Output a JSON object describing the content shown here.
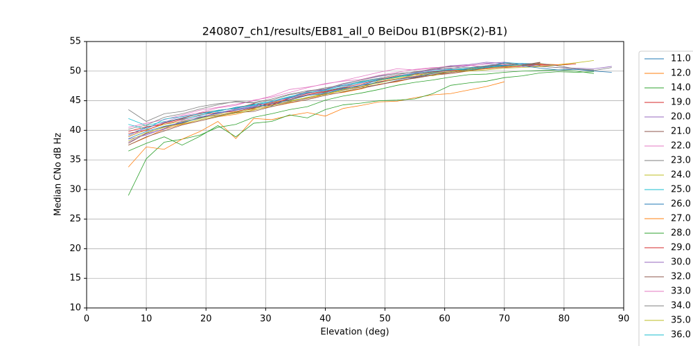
{
  "chart_data": {
    "type": "line",
    "title": "240807_ch1/results/EB81_all_0 BeiDou B1(BPSK(2)-B1)",
    "x_label": "Elevation (deg)",
    "y_label": "Median CNo dB Hz",
    "xlim": [
      0,
      90
    ],
    "xticks": [
      0,
      10,
      20,
      30,
      40,
      50,
      60,
      70,
      80,
      90
    ],
    "ylim": [
      10,
      55
    ],
    "yticks": [
      10,
      15,
      20,
      25,
      30,
      35,
      40,
      45,
      50,
      55
    ],
    "grid": true,
    "legend": "right",
    "x": [
      7,
      10,
      13,
      16,
      19,
      22,
      25,
      28,
      31,
      34,
      37,
      40,
      43,
      46,
      49,
      52,
      55,
      58,
      61,
      64,
      67,
      70,
      73,
      76,
      79,
      82,
      85,
      88
    ],
    "series": [
      {
        "name": "11.0",
        "color": "#1f77b4",
        "values": [
          39.2,
          40.5,
          41.3,
          42.1,
          42.8,
          43.2,
          43.9,
          44.3,
          44.1,
          45.4,
          46.0,
          46.4,
          47.1,
          47.6,
          48.5,
          49.0,
          49.3,
          49.8,
          50.1,
          50.4,
          50.9,
          51.0,
          51.3,
          51.2,
          null,
          null,
          null,
          null
        ]
      },
      {
        "name": "12.0",
        "color": "#ff7f0e",
        "values": [
          37.5,
          38.8,
          40.2,
          41.0,
          41.6,
          42.3,
          42.7,
          43.5,
          44.0,
          44.6,
          45.2,
          46.1,
          46.4,
          47.0,
          47.8,
          48.2,
          48.9,
          49.4,
          49.6,
          50.1,
          50.4,
          50.7,
          51.0,
          51.2,
          51.1,
          51.4,
          null,
          null
        ]
      },
      {
        "name": "14.0",
        "color": "#2ca02c",
        "values": [
          29.0,
          35.2,
          38.0,
          38.5,
          39.2,
          40.5,
          41.0,
          42.2,
          42.8,
          43.5,
          44.0,
          45.1,
          45.8,
          46.3,
          46.9,
          47.6,
          48.1,
          48.5,
          49.0,
          49.4,
          49.5,
          49.8,
          50.0,
          50.1,
          50.2,
          50.0,
          49.6,
          null
        ]
      },
      {
        "name": "19.0",
        "color": "#d62728",
        "values": [
          39.8,
          40.6,
          41.0,
          41.8,
          42.6,
          43.0,
          43.2,
          43.8,
          44.6,
          45.2,
          46.0,
          46.5,
          47.2,
          47.4,
          48.2,
          48.7,
          49.1,
          49.6,
          49.8,
          50.2,
          50.5,
          50.6,
          50.8,
          50.9,
          51.0,
          51.2,
          null,
          null
        ]
      },
      {
        "name": "20.0",
        "color": "#9467bd",
        "values": [
          38.5,
          39.2,
          40.3,
          41.4,
          42.0,
          42.9,
          43.6,
          44.1,
          44.7,
          45.6,
          46.6,
          46.9,
          47.5,
          48.0,
          48.6,
          49.2,
          49.7,
          50.2,
          50.4,
          50.9,
          51.3,
          51.5,
          51.2,
          50.8,
          50.6,
          50.5,
          50.4,
          50.8
        ]
      },
      {
        "name": "21.0",
        "color": "#8c564b",
        "values": [
          37.8,
          39.5,
          40.6,
          41.2,
          42.2,
          42.5,
          43.0,
          43.7,
          44.3,
          44.9,
          45.4,
          46.2,
          46.8,
          47.3,
          47.7,
          48.4,
          48.8,
          49.3,
          49.6,
          50.0,
          50.6,
          51.4,
          51.0,
          51.5,
          null,
          null,
          null,
          null
        ]
      },
      {
        "name": "22.0",
        "color": "#e377c2",
        "values": [
          40.5,
          41.2,
          41.8,
          42.6,
          43.4,
          43.9,
          44.4,
          45.0,
          45.8,
          46.9,
          47.3,
          47.8,
          48.4,
          49.1,
          49.8,
          50.4,
          50.2,
          50.5,
          50.9,
          51.0,
          50.7,
          50.6,
          null,
          null,
          null,
          null,
          null,
          null
        ]
      },
      {
        "name": "23.0",
        "color": "#7f7f7f",
        "values": [
          43.5,
          41.5,
          42.8,
          43.2,
          44.0,
          44.5,
          44.8,
          44.6,
          45.1,
          46.0,
          46.5,
          47.2,
          47.6,
          48.3,
          48.8,
          49.4,
          49.9,
          50.3,
          50.5,
          50.4,
          50.8,
          51.2,
          51.0,
          50.8,
          50.6,
          50.3,
          50.1,
          50.6
        ]
      },
      {
        "name": "24.0",
        "color": "#bcbd22",
        "values": [
          38.9,
          40.1,
          41.0,
          41.5,
          42.0,
          42.7,
          43.1,
          43.6,
          44.8,
          45.0,
          45.5,
          46.3,
          46.6,
          47.1,
          48.4,
          48.9,
          49.5,
          49.2,
          49.9,
          50.0,
          50.2,
          50.5,
          50.6,
          50.8,
          51.0,
          51.4,
          51.8,
          null
        ]
      },
      {
        "name": "25.0",
        "color": "#17becf",
        "values": [
          42.0,
          40.8,
          41.5,
          41.9,
          42.5,
          43.3,
          43.8,
          44.2,
          44.9,
          45.7,
          46.3,
          46.8,
          47.6,
          48.2,
          48.7,
          49.0,
          49.5,
          49.9,
          50.2,
          50.5,
          50.9,
          51.4,
          51.3,
          51.0,
          null,
          null,
          null,
          null
        ]
      },
      {
        "name": "26.0",
        "color": "#1f77b4",
        "values": [
          38.6,
          39.8,
          40.7,
          41.3,
          42.1,
          43.0,
          43.4,
          43.9,
          44.5,
          45.1,
          45.9,
          46.2,
          47.0,
          47.6,
          48.1,
          48.6,
          49.0,
          49.6,
          49.9,
          50.3,
          50.7,
          51.0,
          50.9,
          50.5,
          50.2,
          50.3,
          50.0,
          49.8
        ]
      },
      {
        "name": "27.0",
        "color": "#ff7f0e",
        "values": [
          33.8,
          37.2,
          36.8,
          38.5,
          39.8,
          41.5,
          38.6,
          42.0,
          41.8,
          42.5,
          43.0,
          42.4,
          43.7,
          44.2,
          44.8,
          44.9,
          45.5,
          46.0,
          46.2,
          46.8,
          47.4,
          48.2,
          null,
          null,
          null,
          null,
          null,
          null
        ]
      },
      {
        "name": "28.0",
        "color": "#2ca02c",
        "values": [
          36.5,
          37.8,
          38.9,
          37.5,
          39.0,
          40.8,
          38.9,
          41.2,
          41.5,
          42.6,
          42.1,
          43.5,
          44.3,
          44.6,
          45.0,
          45.1,
          45.3,
          46.2,
          47.6,
          48.0,
          48.3,
          48.9,
          49.2,
          49.7,
          49.9,
          49.8,
          49.9,
          null
        ]
      },
      {
        "name": "29.0",
        "color": "#d62728",
        "values": [
          39.5,
          40.0,
          41.2,
          42.0,
          42.9,
          43.4,
          43.7,
          44.5,
          44.3,
          45.5,
          46.2,
          46.6,
          47.3,
          47.8,
          48.6,
          49.2,
          49.5,
          49.9,
          50.1,
          50.3,
          50.5,
          50.8,
          51.0,
          51.1,
          51.0,
          null,
          null,
          null
        ]
      },
      {
        "name": "30.0",
        "color": "#9467bd",
        "values": [
          38.0,
          39.4,
          40.2,
          41.6,
          42.3,
          42.8,
          43.5,
          44.0,
          44.8,
          45.5,
          46.3,
          46.9,
          47.8,
          48.5,
          49.1,
          49.6,
          49.8,
          50.2,
          50.9,
          51.1,
          51.5,
          51.3,
          null,
          null,
          null,
          null,
          null,
          null
        ]
      },
      {
        "name": "32.0",
        "color": "#8c564b",
        "values": [
          37.5,
          38.9,
          39.9,
          40.9,
          41.6,
          42.3,
          43.0,
          43.2,
          44.0,
          44.7,
          45.2,
          45.9,
          46.5,
          47.1,
          47.7,
          48.3,
          48.9,
          49.4,
          49.8,
          50.2,
          50.5,
          50.9,
          51.1,
          51.4,
          null,
          null,
          null,
          null
        ]
      },
      {
        "name": "33.0",
        "color": "#e377c2",
        "values": [
          39.0,
          40.3,
          41.4,
          42.4,
          43.0,
          43.8,
          44.2,
          45.1,
          45.6,
          46.4,
          47.2,
          47.9,
          48.3,
          48.6,
          49.3,
          49.8,
          50.3,
          50.6,
          50.7,
          51.0,
          51.2,
          51.1,
          50.8,
          null,
          null,
          null,
          null,
          null
        ]
      },
      {
        "name": "34.0",
        "color": "#7f7f7f",
        "values": [
          40.2,
          40.9,
          42.2,
          42.8,
          43.6,
          44.3,
          44.9,
          44.7,
          45.3,
          46.1,
          46.7,
          47.0,
          47.9,
          48.5,
          49.2,
          49.6,
          49.8,
          50.4,
          50.8,
          50.6,
          50.9,
          51.2,
          51.0,
          51.3,
          50.9,
          50.4,
          50.2,
          null
        ]
      },
      {
        "name": "35.0",
        "color": "#bcbd22",
        "values": [
          38.2,
          39.6,
          40.5,
          41.1,
          41.8,
          42.4,
          42.9,
          43.4,
          44.2,
          44.8,
          45.6,
          46.0,
          46.9,
          47.4,
          48.0,
          48.7,
          49.3,
          49.7,
          49.9,
          50.3,
          50.6,
          50.7,
          51.0,
          null,
          null,
          null,
          null,
          null
        ]
      },
      {
        "name": "36.0",
        "color": "#17becf",
        "values": [
          41.0,
          40.2,
          41.9,
          42.3,
          42.8,
          43.4,
          43.7,
          44.4,
          44.9,
          45.6,
          46.4,
          46.7,
          47.3,
          48.1,
          48.5,
          49.1,
          49.6,
          50.0,
          50.3,
          50.2,
          50.6,
          50.9,
          51.1,
          null,
          null,
          null,
          null,
          null
        ]
      }
    ]
  }
}
